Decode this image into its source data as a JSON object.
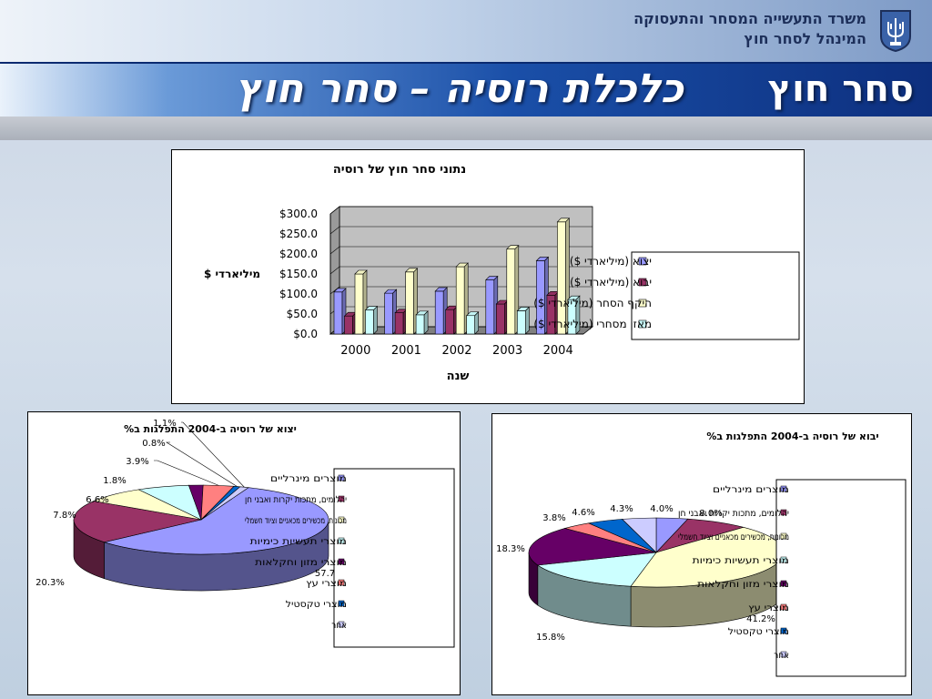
{
  "header": {
    "ministry_line1": "משרד התעשייה המסחר והתעסוקה",
    "ministry_line2": "המינהל לסחר חוץ",
    "section_title": "סחר חוץ",
    "main_title": "כלכלת רוסיה – סחר חוץ"
  },
  "colors": {
    "series": [
      "#9999ff",
      "#993366",
      "#ffffcc",
      "#ccffff",
      "#660066",
      "#ff8080",
      "#0066cc",
      "#ccccff"
    ]
  },
  "chart_data": [
    {
      "type": "bar",
      "title": "נתוני סחר חוץ של רוסיה",
      "xlabel": "שנה",
      "ylabel": "מיליארדי $",
      "categories": [
        "2000",
        "2001",
        "2002",
        "2003",
        "2004"
      ],
      "ylim": [
        0,
        300
      ],
      "yticks": [
        "$0.0",
        "$50.0",
        "$100.0",
        "$150.0",
        "$200.0",
        "$250.0",
        "$300.0"
      ],
      "legend_position": "right",
      "series": [
        {
          "name": "יצוא (מיליארדי $)",
          "values": [
            105,
            102,
            107,
            135,
            183
          ]
        },
        {
          "name": "יבוא (מיליארדי $)",
          "values": [
            45,
            53,
            61,
            75,
            97
          ]
        },
        {
          "name": "היקף הסחר (מיליארדי $)",
          "values": [
            150,
            155,
            168,
            212,
            280
          ]
        },
        {
          "name": "מאזן מסחרי (מיליארדי $)",
          "values": [
            60,
            48,
            46,
            58,
            86
          ]
        }
      ]
    },
    {
      "type": "pie",
      "title": "יצוא של רוסיה ב-2004 התפלגות ב%",
      "legend_position": "right",
      "categories": [
        "מוצרים מינרליים",
        "יהלומים, מתכות יקרות ואבני חן",
        "מכונות, מכשירים מכאניים וציוד חשמלי",
        "מוצרי תעשיות כימיות",
        "מוצרי מזון וחקלאות",
        "מוצרי עץ",
        "מוצרי טקסטיל",
        "אחר"
      ],
      "values": [
        57.7,
        20.3,
        7.8,
        6.6,
        1.8,
        3.9,
        0.8,
        1.1
      ],
      "value_labels": [
        "57.7",
        "20.3%",
        "7.8%",
        "6.6%",
        "1.8%",
        "3.9%",
        "0.8%",
        "1.1%"
      ]
    },
    {
      "type": "pie",
      "title": "יבוא של רוסיה ב-2004 התפלגות ב%",
      "legend_position": "right",
      "categories": [
        "מוצרים מינרליים",
        "יהלומים, מתכות יקרות ואבני חן",
        "מכונות, מכשירים מכאניים וציוד חשמלי",
        "מוצרי תעשיות כימיות",
        "מוצרי מזון וחקלאות",
        "מוצרי עץ",
        "מוצרי טקסטיל",
        "אחר"
      ],
      "values": [
        4.0,
        8.0,
        41.2,
        15.8,
        18.3,
        3.8,
        4.6,
        4.3
      ],
      "value_labels": [
        "4.0%",
        "8.0%",
        "41.2%",
        "15.8%",
        "18.3%",
        "3.8%",
        "4.6%",
        "4.3%"
      ]
    }
  ]
}
